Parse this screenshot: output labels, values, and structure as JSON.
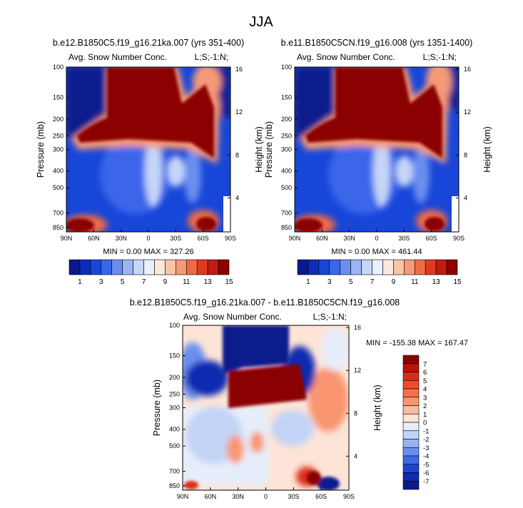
{
  "figure": {
    "title": "JJA"
  },
  "chart_data": [
    {
      "type": "heatmap",
      "panel": "top-left",
      "title": "b.e12.B1850C5.f19_g16.21ka.007 (yrs 351-400)",
      "left_label": "Avg. Snow Number Conc.",
      "right_label": "L;S;-1:N;",
      "ylabel": "Pressure (mb)",
      "ylabel_right": "Height (km)",
      "xticks": [
        "90N",
        "60N",
        "30N",
        "0",
        "30S",
        "60S",
        "90S"
      ],
      "yticks": [
        "100",
        "150",
        "200",
        "250",
        "300",
        "400",
        "500",
        "700",
        "850"
      ],
      "yticks_right": [
        "16",
        "12",
        "8",
        "4"
      ],
      "stats": {
        "min_label": "MIN =",
        "min": "0.00",
        "max_label": "MAX =",
        "max": "327.26"
      },
      "colorbar_levels": [
        "1",
        "3",
        "5",
        "7",
        "9",
        "11",
        "13",
        "15"
      ],
      "colorbar_colors": [
        "#0a1a8c",
        "#0c2dbb",
        "#1846d8",
        "#3a66ea",
        "#6a8ef0",
        "#9ab4f4",
        "#c6d6f8",
        "#eaf0fc",
        "#fde8dc",
        "#fac4aa",
        "#f59a77",
        "#ef6b47",
        "#e03a23",
        "#c01c10",
        "#8b0000"
      ],
      "xlim": [
        -90,
        90
      ],
      "ylim_mb": [
        100,
        900
      ]
    },
    {
      "type": "heatmap",
      "panel": "top-right",
      "title": "b.e11.B1850C5CN.f19_g16.008 (yrs 1351-1400)",
      "left_label": "Avg. Snow Number Conc.",
      "right_label": "L;S;-1:N;",
      "ylabel": "Pressure (mb)",
      "ylabel_right": "Height (km)",
      "xticks": [
        "90N",
        "60N",
        "30N",
        "0",
        "30S",
        "60S",
        "90S"
      ],
      "yticks": [
        "100",
        "150",
        "200",
        "250",
        "300",
        "400",
        "500",
        "700",
        "850"
      ],
      "yticks_right": [
        "16",
        "12",
        "8",
        "4"
      ],
      "stats": {
        "min_label": "MIN =",
        "min": "0.00",
        "max_label": "MAX =",
        "max": "461.44"
      },
      "colorbar_levels": [
        "1",
        "3",
        "5",
        "7",
        "9",
        "11",
        "13",
        "15"
      ],
      "colorbar_colors": [
        "#0a1a8c",
        "#0c2dbb",
        "#1846d8",
        "#3a66ea",
        "#6a8ef0",
        "#9ab4f4",
        "#c6d6f8",
        "#eaf0fc",
        "#fde8dc",
        "#fac4aa",
        "#f59a77",
        "#ef6b47",
        "#e03a23",
        "#c01c10",
        "#8b0000"
      ],
      "xlim": [
        -90,
        90
      ],
      "ylim_mb": [
        100,
        900
      ]
    },
    {
      "type": "heatmap",
      "panel": "bottom-difference",
      "title": "b.e12.B1850C5.f19_g16.21ka.007 - b.e11.B1850C5CN.f19_g16.008",
      "left_label": "Avg. Snow Number Conc.",
      "right_label": "L;S;-1:N;",
      "ylabel": "Pressure (mb)",
      "ylabel_right": "Height (km)",
      "xticks": [
        "90N",
        "60N",
        "30N",
        "0",
        "30S",
        "60S",
        "90S"
      ],
      "yticks": [
        "100",
        "150",
        "200",
        "250",
        "300",
        "400",
        "500",
        "700",
        "850"
      ],
      "yticks_right": [
        "16",
        "12",
        "8",
        "4"
      ],
      "stats": {
        "min_label": "MIN =",
        "min": "-155.38",
        "max_label": "MAX =",
        "max": "167.47"
      },
      "colorbar_levels": [
        "7",
        "6",
        "5",
        "4",
        "3",
        "2",
        "1",
        "0",
        "-1",
        "-2",
        "-3",
        "-4",
        "-5",
        "-6",
        "-7"
      ],
      "colorbar_colors": [
        "#8b0000",
        "#b81408",
        "#d92d18",
        "#ec4d2c",
        "#f56f47",
        "#f99571",
        "#fbbc9f",
        "#fde4d6",
        "#e6eefb",
        "#c2d4f6",
        "#97b3f1",
        "#6a8ef0",
        "#3d6ae6",
        "#1e45d2",
        "#0e2ab0",
        "#0a1a8c"
      ],
      "xlim": [
        -90,
        90
      ],
      "ylim_mb": [
        100,
        900
      ]
    }
  ]
}
